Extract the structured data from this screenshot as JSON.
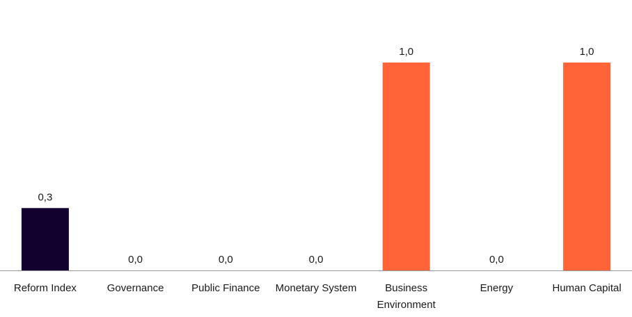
{
  "chart_data": {
    "type": "bar",
    "categories": [
      [
        "Reform Index"
      ],
      [
        "Governance"
      ],
      [
        "Public Finance"
      ],
      [
        "Monetary System"
      ],
      [
        "Business",
        "Environment"
      ],
      [
        "Energy"
      ],
      [
        "Human Capital"
      ]
    ],
    "values": [
      0.3,
      0.0,
      0.0,
      0.0,
      1.0,
      0.0,
      1.0
    ],
    "value_labels": [
      "0,3",
      "0,0",
      "0,0",
      "0,0",
      "1,0",
      "0,0",
      "1,0"
    ],
    "bar_colors": [
      "#12002e",
      "#ff6337",
      "#ff6337",
      "#ff6337",
      "#ff6337",
      "#ff6337",
      "#ff6337"
    ],
    "ylim": [
      0,
      1.0
    ],
    "title": "",
    "xlabel": "",
    "ylabel": "",
    "grid": false,
    "legend": "none",
    "axis_color": "#999999"
  }
}
